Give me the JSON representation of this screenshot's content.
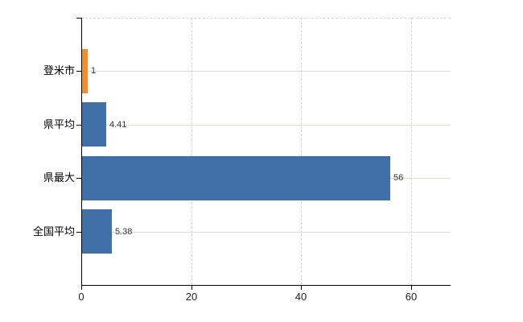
{
  "chart_data": {
    "type": "bar",
    "orientation": "horizontal",
    "title": "",
    "xlabel": "",
    "ylabel": "",
    "categories": [
      "登米市",
      "県平均",
      "県最大",
      "全国平均"
    ],
    "values": [
      1,
      4.41,
      56,
      5.38
    ],
    "value_labels": [
      "1",
      "4.41",
      "56",
      "5.38"
    ],
    "bar_colors": [
      "#EE8F2E",
      "#4170A8",
      "#4170A8",
      "#4170A8"
    ],
    "x_ticks": [
      0,
      20,
      40,
      60
    ],
    "x_tick_labels": [
      "0",
      "20",
      "40",
      "60"
    ],
    "xlim": [
      0,
      67.2
    ],
    "grid": true,
    "legend": false,
    "background_color": "#ffffff",
    "axis_color": "#000000",
    "vertical_grid_color": "#d4d4d4",
    "horizontal_grid_color": "#d7dcd2"
  }
}
